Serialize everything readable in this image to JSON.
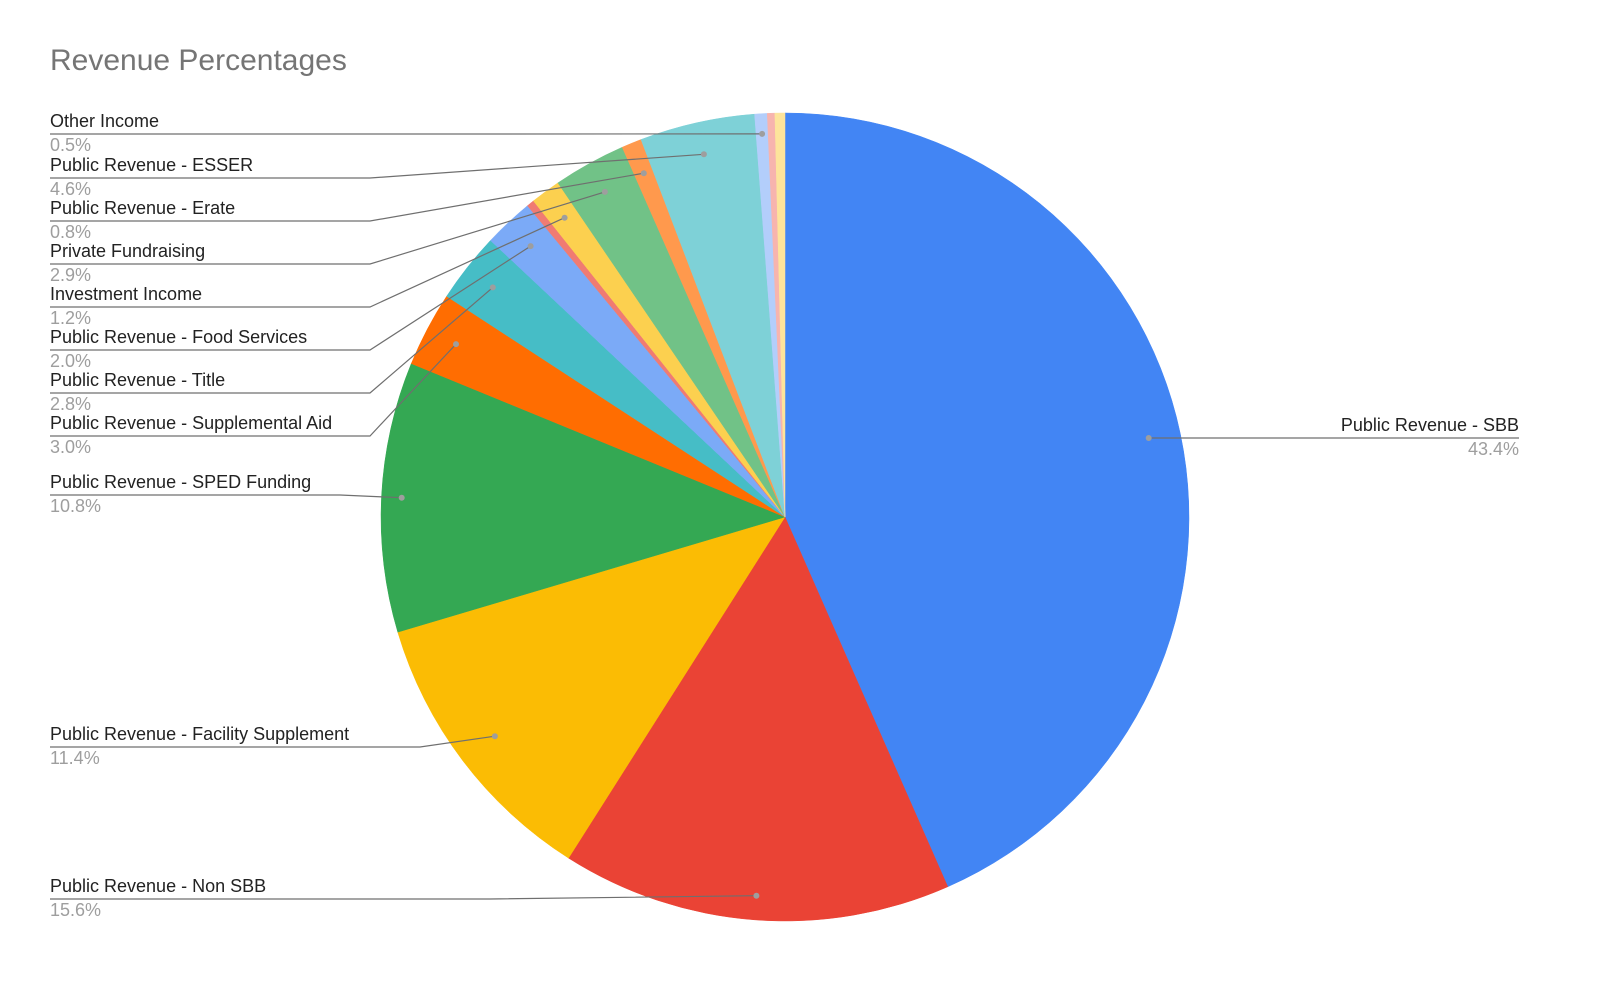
{
  "chart_data": {
    "type": "pie",
    "title": "Revenue Percentages",
    "start_angle_deg": 0,
    "direction": "clockwise",
    "legend": "labels",
    "slices": [
      {
        "label": "Public Revenue - SBB",
        "value": 43.4,
        "pct_label": "43.4%",
        "color": "#4285f4"
      },
      {
        "label": "Public Revenue - Non SBB",
        "value": 15.6,
        "pct_label": "15.6%",
        "color": "#ea4335"
      },
      {
        "label": "Public Revenue - Facility Supplement",
        "value": 11.4,
        "pct_label": "11.4%",
        "color": "#fbbc04"
      },
      {
        "label": "Public Revenue - SPED Funding",
        "value": 10.8,
        "pct_label": "10.8%",
        "color": "#34a853"
      },
      {
        "label": "Public Revenue - Supplemental Aid",
        "value": 3.0,
        "pct_label": "3.0%",
        "color": "#ff6d01"
      },
      {
        "label": "Public Revenue - Title",
        "value": 2.8,
        "pct_label": "2.8%",
        "color": "#46bdc6"
      },
      {
        "label": "Public Revenue - Food Services",
        "value": 2.0,
        "pct_label": "2.0%",
        "color": "#7baaf7"
      },
      {
        "label": "Investment Income",
        "value": 0.3,
        "pct_label": "",
        "color": "#f07b72"
      },
      {
        "label": "Investment Income",
        "value": 1.2,
        "pct_label": "1.2%",
        "color": "#fcd04f"
      },
      {
        "label": "Private Fundraising",
        "value": 2.9,
        "pct_label": "2.9%",
        "color": "#71c287"
      },
      {
        "label": "Public Revenue - Erate",
        "value": 0.8,
        "pct_label": "0.8%",
        "color": "#ff994d"
      },
      {
        "label": "Public Revenue - ESSER",
        "value": 4.6,
        "pct_label": "4.6%",
        "color": "#7ed1d7"
      },
      {
        "label": "Other Income",
        "value": 0.5,
        "pct_label": "0.5%",
        "color": "#b3cefb"
      },
      {
        "label": "",
        "value": 0.3,
        "pct_label": "",
        "color": "#f7b4ae"
      },
      {
        "label": "",
        "value": 0.4,
        "pct_label": "",
        "color": "#fde49b"
      }
    ]
  }
}
